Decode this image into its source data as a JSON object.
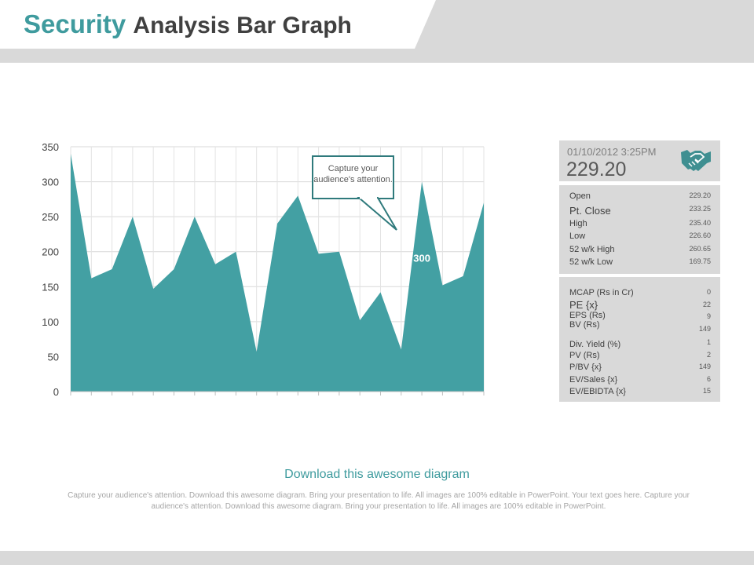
{
  "header": {
    "title_accent": "Security",
    "title_rest": "Analysis Bar Graph"
  },
  "chart_data": {
    "type": "area",
    "ylim": [
      0,
      350
    ],
    "y_ticks": [
      "350",
      "300",
      "250",
      "200",
      "150",
      "100",
      "50",
      "0"
    ],
    "values": [
      340,
      162,
      175,
      250,
      147,
      175,
      250,
      182,
      200,
      57,
      240,
      280,
      197,
      200,
      102,
      142,
      60,
      300,
      152,
      165,
      270
    ],
    "color": "#43a0a3",
    "data_label": "300",
    "callout": "Capture your audience's attention."
  },
  "quote": {
    "datetime": "01/10/2012  3:25PM",
    "price": "229.20",
    "icon": "handshake-icon",
    "rows": [
      {
        "label": "Open",
        "value": "229.20"
      },
      {
        "label": "Pt. Close",
        "value": "233.25"
      },
      {
        "label": "High",
        "value": "235.40"
      },
      {
        "label": "Low",
        "value": "226.60"
      },
      {
        "label": "52 w/k High",
        "value": "260.65"
      },
      {
        "label": "52 w/k Low",
        "value": "169.75"
      }
    ],
    "stats": [
      {
        "label": "MCAP  (Rs in Cr)",
        "value": "0"
      },
      {
        "label": "PE {x}",
        "value": "22"
      },
      {
        "label": "EPS (Rs)",
        "value": "9"
      },
      {
        "label": "BV (Rs)",
        "value": "149"
      },
      {
        "label": "Div. Yield (%)",
        "value": "1"
      },
      {
        "label": "PV (Rs)",
        "value": "2"
      },
      {
        "label": "P/BV {x}",
        "value": "149"
      },
      {
        "label": "EV/Sales  {x}",
        "value": "6"
      },
      {
        "label": "EV/EBIDTA  {x}",
        "value": "15"
      }
    ]
  },
  "footer": {
    "heading": "Download this awesome diagram",
    "body": "Capture your audience's attention. Download this awesome diagram. Bring your presentation to life. All images are 100% editable in PowerPoint. Your text goes here. Capture your audience's attention. Download this awesome diagram. Bring your presentation to life. All images are 100% editable in PowerPoint."
  }
}
